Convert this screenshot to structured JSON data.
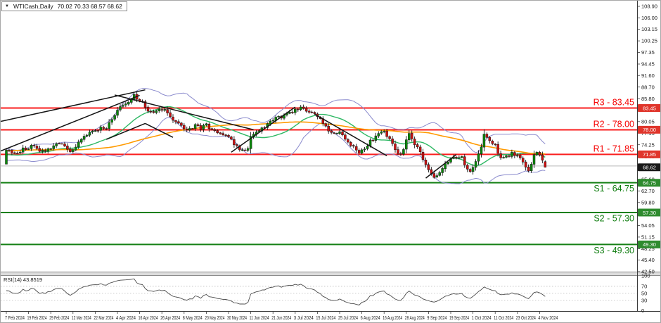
{
  "title": {
    "dropdown_icon": "▼",
    "symbol": "WTICash,Daily",
    "ohlc": "70.02 70.33 68.57 68.62"
  },
  "indicator": {
    "label": "RSI(14) 43.8519"
  },
  "price_axis": {
    "max": 108.9,
    "min": 42.5,
    "ticks": [
      "108.90",
      "106.00",
      "103.15",
      "100.25",
      "97.35",
      "94.45",
      "91.60",
      "88.70",
      "85.80",
      "82.90",
      "80.05",
      "77.15",
      "74.25",
      "71.35",
      "68.45",
      "65.60",
      "62.70",
      "59.80",
      "56.90",
      "54.05",
      "51.15",
      "48.25",
      "45.40",
      "42.50"
    ]
  },
  "time_axis": {
    "candles_per_label": 8,
    "labels": [
      "7 Feb 2024",
      "19 Feb 2024",
      "29 Feb 2024",
      "12 Mar 2024",
      "22 Mar 2024",
      "4 Apr 2024",
      "16 Apr 2024",
      "26 Apr 2024",
      "8 May 2024",
      "20 May 2024",
      "30 May 2024",
      "11 Jun 2024",
      "21 Jun 2024",
      "3 Jul 2024",
      "15 Jul 2024",
      "25 Jul 2024",
      "6 Aug 2024",
      "16 Aug 2024",
      "28 Aug 2024",
      "9 Sep 2024",
      "19 Sep 2024",
      "1 Oct 2024",
      "11 Oct 2024",
      "23 Oct 2024",
      "4 Nov 2024"
    ]
  },
  "levels": [
    {
      "id": "r3",
      "label": "R3 - 83.45",
      "value": 83.45,
      "kind": "resistance"
    },
    {
      "id": "r2",
      "label": "R2 - 78.00",
      "value": 78.0,
      "kind": "resistance"
    },
    {
      "id": "r1",
      "label": "R1 - 71.85",
      "value": 71.85,
      "kind": "resistance"
    },
    {
      "id": "s1",
      "label": "S1 - 64.75",
      "value": 64.75,
      "kind": "support"
    },
    {
      "id": "s2",
      "label": "S2 - 57.30",
      "value": 57.3,
      "kind": "support"
    },
    {
      "id": "s3",
      "label": "S3 - 49.30",
      "value": 49.3,
      "kind": "support"
    }
  ],
  "current_price": {
    "badge": "68.62",
    "value": 68.62,
    "bid_line_value": 68.95
  },
  "colors": {
    "resistance_line": "#fa1e1e",
    "resistance_label": "#f50000",
    "resistance_badge": "#e0352b",
    "support_line": "#158015",
    "support_label": "#0f7d0f",
    "support_badge": "#2e8b2e",
    "current_badge": "#1a1a1a",
    "bid_line": "#b8b8b8",
    "candle_up": "#0a8a0a",
    "candle_down": "#cc1010",
    "candle_outline": "#141414",
    "bollinger": "#8a8acd",
    "ma_fast": "#2eb864",
    "ma_slow": "#ff9a00",
    "trendline": "#141414",
    "rsi_line": "#4a4a4a",
    "axis_text": "#1c1c1c",
    "grid_dotted": "#bbbbbb"
  },
  "chart_data": {
    "type": "candlestick",
    "symbol": "WTICash",
    "timeframe": "Daily",
    "title": "WTICash Daily with Bollinger Bands, moving averages, pivot support/resistance and RSI(14)",
    "last_ohlc": {
      "open": 70.02,
      "high": 70.33,
      "low": 68.57,
      "close": 68.62
    },
    "first_open": 69.4,
    "visible_candles": 195,
    "ylim": [
      42.5,
      108.9
    ],
    "anchors": [
      [
        -70,
        71.0
      ],
      [
        -60,
        71.6
      ],
      [
        -45,
        73.8
      ],
      [
        -30,
        74.3
      ],
      [
        -15,
        72.2
      ],
      [
        -5,
        70.9
      ],
      [
        -1,
        71.3
      ],
      [
        0,
        73.3
      ],
      [
        2,
        72.6
      ],
      [
        4,
        72.2
      ],
      [
        6,
        73.1
      ],
      [
        8,
        73.5
      ],
      [
        10,
        74.3
      ],
      [
        12,
        72.4
      ],
      [
        14,
        73.0
      ],
      [
        16,
        73.7
      ],
      [
        18,
        74.7
      ],
      [
        20,
        74.3
      ],
      [
        22,
        73.1
      ],
      [
        24,
        72.7
      ],
      [
        26,
        74.7
      ],
      [
        28,
        76.3
      ],
      [
        30,
        77.2
      ],
      [
        32,
        77.7
      ],
      [
        34,
        78.7
      ],
      [
        36,
        78.3
      ],
      [
        38,
        80.6
      ],
      [
        40,
        83.2
      ],
      [
        42,
        84.4
      ],
      [
        44,
        85.1
      ],
      [
        46,
        86.5
      ],
      [
        47,
        85.5
      ],
      [
        49,
        84.8
      ],
      [
        51,
        82.5
      ],
      [
        53,
        82.0
      ],
      [
        55,
        82.9
      ],
      [
        57,
        83.4
      ],
      [
        59,
        81.3
      ],
      [
        61,
        80.1
      ],
      [
        63,
        78.7
      ],
      [
        64,
        78.0
      ],
      [
        66,
        78.4
      ],
      [
        68,
        79.0
      ],
      [
        70,
        78.2
      ],
      [
        72,
        79.3
      ],
      [
        74,
        78.1
      ],
      [
        76,
        77.3
      ],
      [
        78,
        76.9
      ],
      [
        80,
        76.3
      ],
      [
        82,
        74.3
      ],
      [
        84,
        73.4
      ],
      [
        86,
        72.7
      ],
      [
        87,
        73.6
      ],
      [
        88,
        76.0
      ],
      [
        90,
        77.5
      ],
      [
        92,
        78.3
      ],
      [
        94,
        79.4
      ],
      [
        96,
        80.5
      ],
      [
        98,
        81.0
      ],
      [
        100,
        81.4
      ],
      [
        102,
        82.4
      ],
      [
        104,
        83.2
      ],
      [
        106,
        83.4
      ],
      [
        108,
        82.7
      ],
      [
        110,
        82.1
      ],
      [
        112,
        81.4
      ],
      [
        114,
        79.7
      ],
      [
        116,
        77.9
      ],
      [
        118,
        77.4
      ],
      [
        120,
        77.1
      ],
      [
        122,
        75.7
      ],
      [
        124,
        74.4
      ],
      [
        126,
        73.1
      ],
      [
        127,
        72.0
      ],
      [
        129,
        73.5
      ],
      [
        131,
        75.2
      ],
      [
        133,
        76.4
      ],
      [
        135,
        77.1
      ],
      [
        136,
        77.5
      ],
      [
        138,
        75.6
      ],
      [
        140,
        73.3
      ],
      [
        142,
        71.7
      ],
      [
        143,
        73.1
      ],
      [
        144,
        75.5
      ],
      [
        145,
        76.9
      ],
      [
        147,
        74.5
      ],
      [
        149,
        72.4
      ],
      [
        151,
        69.3
      ],
      [
        152,
        68.0
      ],
      [
        154,
        65.9
      ],
      [
        156,
        67.4
      ],
      [
        158,
        69.1
      ],
      [
        160,
        70.5
      ],
      [
        162,
        71.3
      ],
      [
        164,
        70.9
      ],
      [
        166,
        68.3
      ],
      [
        167,
        67.4
      ],
      [
        168,
        68.7
      ],
      [
        169,
        70.3
      ],
      [
        170,
        72.2
      ],
      [
        171,
        74.1
      ],
      [
        172,
        77.0
      ],
      [
        173,
        75.9
      ],
      [
        174,
        75.2
      ],
      [
        176,
        73.9
      ],
      [
        177,
        72.1
      ],
      [
        178,
        70.7
      ],
      [
        180,
        71.4
      ],
      [
        182,
        72.0
      ],
      [
        184,
        71.8
      ],
      [
        186,
        70.2
      ],
      [
        187,
        68.7
      ],
      [
        188,
        67.5
      ],
      [
        189,
        69.5
      ],
      [
        190,
        71.5
      ],
      [
        191,
        72.0
      ],
      [
        192,
        71.5
      ],
      [
        193,
        70.0
      ],
      [
        194,
        68.62
      ]
    ],
    "overlays": {
      "bollinger_period": 20,
      "bollinger_dev": 2,
      "ma_fast_period": 20,
      "ma_slow_period": 65
    },
    "rsi": {
      "period": 14,
      "last_value": 43.8519,
      "scale": [
        "100",
        "70",
        "50",
        "30",
        "0"
      ],
      "scale_values": [
        100,
        70,
        50,
        30,
        0
      ],
      "dotted_levels": [
        70,
        50,
        30
      ],
      "ylim": [
        0,
        100
      ]
    },
    "trendlines": [
      [
        [
          -2,
          72.7
        ],
        [
          48,
          86.6
        ]
      ],
      [
        [
          -2,
          80.1
        ],
        [
          50,
          88.0
        ]
      ],
      [
        [
          36,
          75.6
        ],
        [
          50,
          79.6
        ]
      ],
      [
        [
          50,
          79.6
        ],
        [
          60,
          76.1
        ]
      ],
      [
        [
          39,
          86.7
        ],
        [
          89,
          78.0
        ]
      ],
      [
        [
          81,
          72.4
        ],
        [
          104,
          83.7
        ]
      ],
      [
        [
          111,
          81.9
        ],
        [
          137,
          71.5
        ]
      ],
      [
        [
          151,
          65.9
        ],
        [
          162,
          71.8
        ]
      ]
    ]
  }
}
